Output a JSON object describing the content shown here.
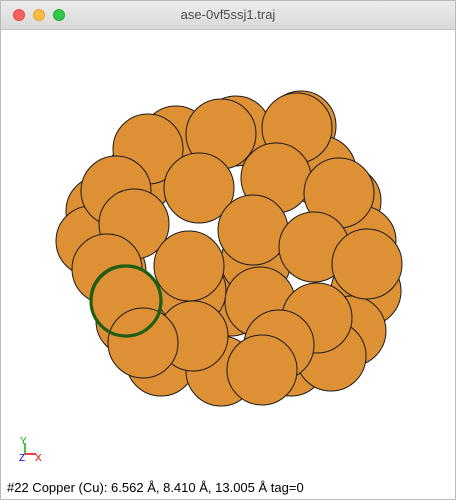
{
  "window": {
    "title": "ase-0vf5ssj1.traj"
  },
  "icons": {
    "close": "close-icon",
    "minimize": "minimize-icon",
    "zoom": "zoom-icon",
    "axes": "axes-icon"
  },
  "colors": {
    "atom_fill": "#de9035",
    "atom_stroke": "#1a1a1a",
    "selection": "#1e5e14",
    "axis_x": "#e60000",
    "axis_y": "#00b300",
    "axis_z": "#0000e6"
  },
  "axes": {
    "x_label": "X",
    "y_label": "Y",
    "z_label": "Z"
  },
  "status": {
    "text": "#22 Copper (Cu): 6.562 Å, 8.410 Å, 13.005 Å  tag=0"
  }
}
